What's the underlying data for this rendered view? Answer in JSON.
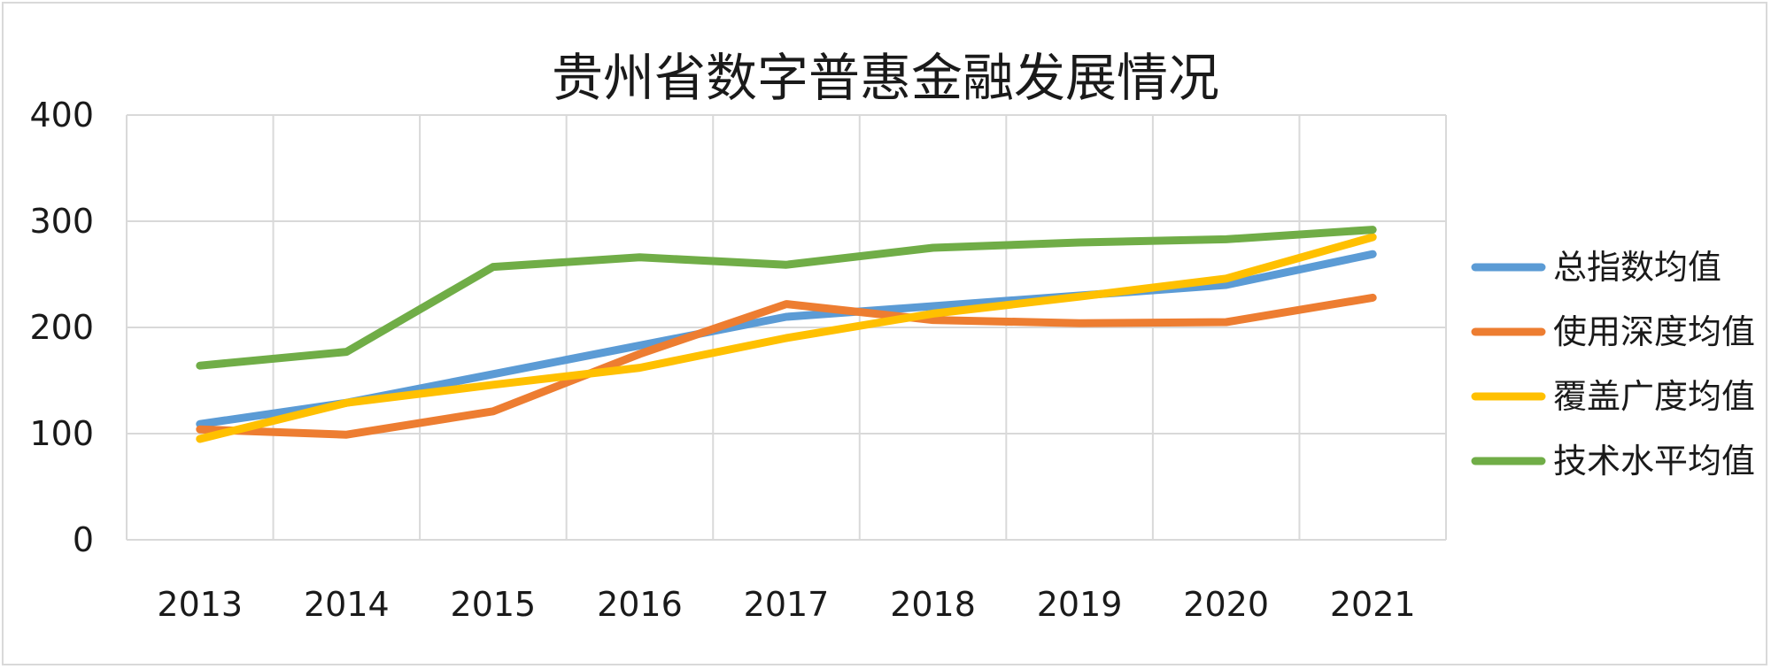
{
  "chart_data": {
    "type": "line",
    "title": "贵州省数字普惠金融发展情况",
    "xlabel": "",
    "ylabel": "",
    "categories": [
      "2013",
      "2014",
      "2015",
      "2016",
      "2017",
      "2018",
      "2019",
      "2020",
      "2021"
    ],
    "ylim": [
      0,
      400
    ],
    "yticks": [
      0,
      100,
      200,
      300,
      400
    ],
    "grid": true,
    "legend_position": "right",
    "series": [
      {
        "name": "总指数均值",
        "color": "#5B9BD5",
        "values": [
          109,
          129,
          156,
          183,
          210,
          220,
          230,
          240,
          269
        ]
      },
      {
        "name": "使用深度均值",
        "color": "#ED7D31",
        "values": [
          104,
          99,
          121,
          175,
          222,
          207,
          204,
          205,
          228
        ]
      },
      {
        "name": "覆盖广度均值",
        "color": "#FFC000",
        "values": [
          95,
          129,
          146,
          162,
          190,
          213,
          229,
          246,
          285
        ]
      },
      {
        "name": "技术水平均值",
        "color": "#70AD47",
        "values": [
          164,
          177,
          257,
          266,
          259,
          275,
          280,
          283,
          292
        ]
      }
    ]
  }
}
